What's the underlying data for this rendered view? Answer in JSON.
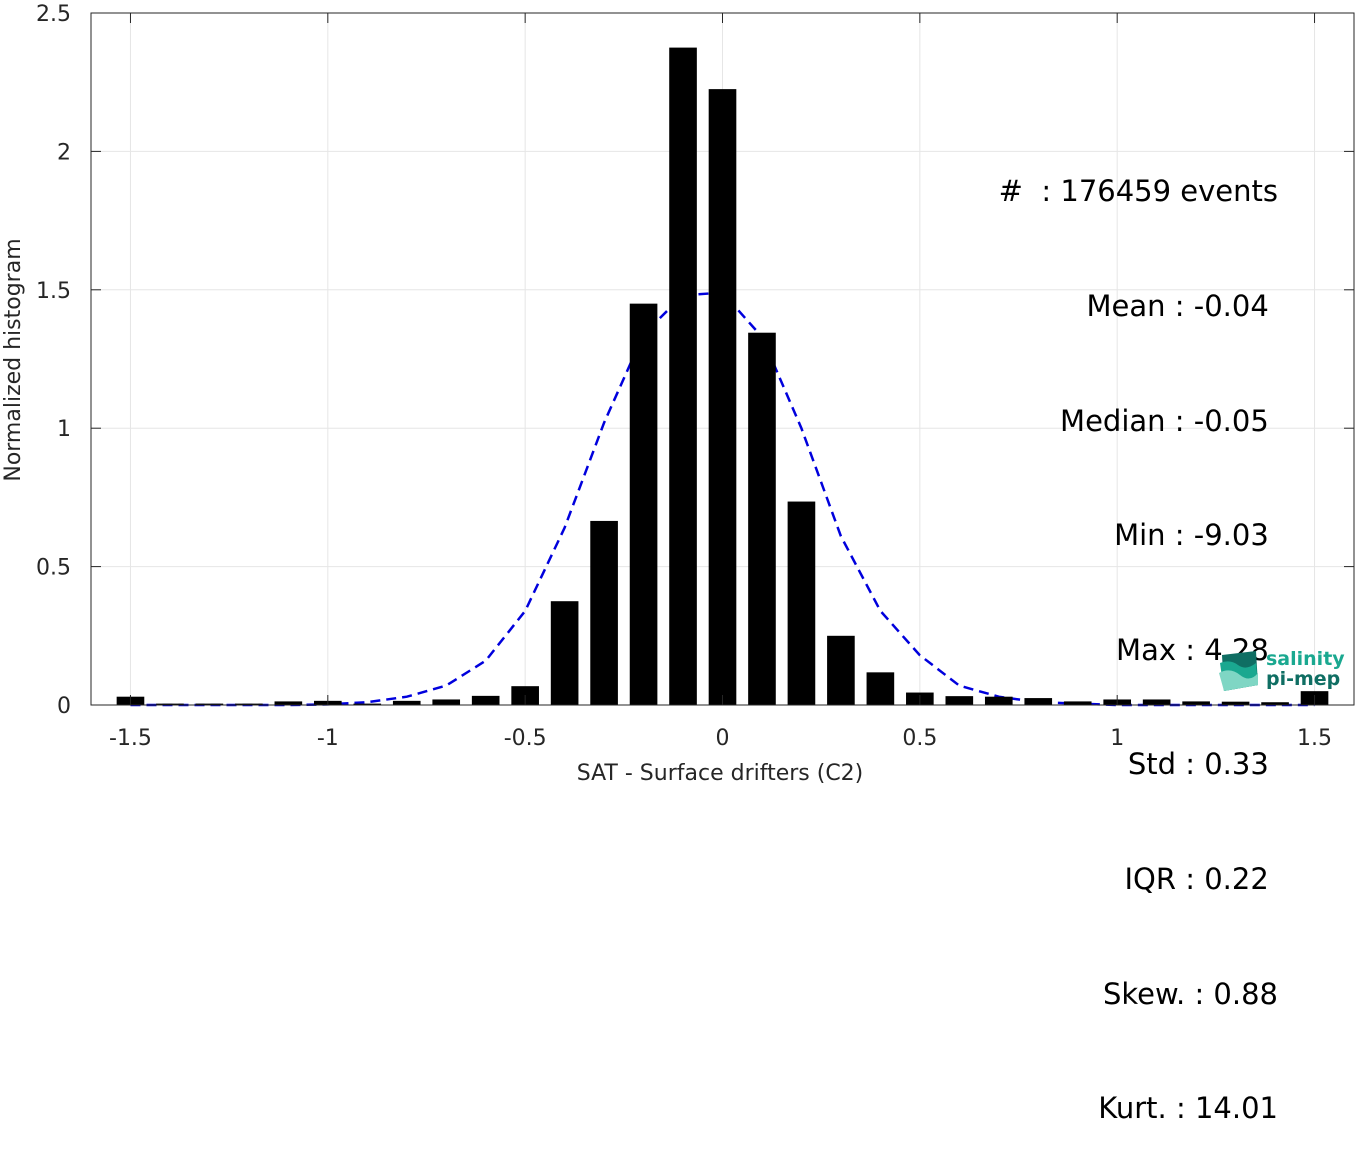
{
  "chart_data": {
    "type": "bar",
    "xlabel": "SAT - Surface drifters (C2)",
    "ylabel": "Normalized histogram",
    "xlim": [
      -1.6,
      1.6
    ],
    "ylim": [
      0,
      2.5
    ],
    "xticks": [
      -1.5,
      -1,
      -0.5,
      0,
      0.5,
      1,
      1.5
    ],
    "xtick_labels": [
      "-1.5",
      "-1",
      "-0.5",
      "0",
      "0.5",
      "1",
      "1.5"
    ],
    "yticks": [
      0,
      0.5,
      1,
      1.5,
      2,
      2.5
    ],
    "ytick_labels": [
      "0",
      "0.5",
      "1",
      "1.5",
      "2",
      "2.5"
    ],
    "grid": true,
    "bar_width": 0.07,
    "bar_color": "#000000",
    "bins": [
      -1.5,
      -1.4,
      -1.3,
      -1.2,
      -1.1,
      -1.0,
      -0.9,
      -0.8,
      -0.7,
      -0.6,
      -0.5,
      -0.4,
      -0.3,
      -0.2,
      -0.1,
      0.0,
      0.1,
      0.2,
      0.3,
      0.4,
      0.5,
      0.6,
      0.7,
      0.8,
      0.9,
      1.0,
      1.1,
      1.2,
      1.3,
      1.4,
      1.5
    ],
    "values": [
      0.03,
      0.005,
      0.005,
      0.005,
      0.013,
      0.015,
      0.005,
      0.015,
      0.02,
      0.033,
      0.068,
      0.375,
      0.665,
      1.45,
      2.375,
      2.225,
      1.345,
      0.735,
      0.25,
      0.118,
      0.045,
      0.032,
      0.03,
      0.025,
      0.013,
      0.02,
      0.02,
      0.013,
      0.012,
      0.01,
      0.05
    ],
    "fit_line": {
      "style": "dashed",
      "color": "#0000dd",
      "x": [
        -1.5,
        -1.4,
        -1.3,
        -1.2,
        -1.1,
        -1.0,
        -0.9,
        -0.8,
        -0.7,
        -0.6,
        -0.5,
        -0.4,
        -0.3,
        -0.2,
        -0.1,
        0.0,
        0.1,
        0.2,
        0.3,
        0.4,
        0.5,
        0.6,
        0.7,
        0.8,
        0.9,
        1.0,
        1.1,
        1.2,
        1.3,
        1.4,
        1.5
      ],
      "y": [
        0.0,
        0.0,
        0.0,
        0.0,
        0.0,
        0.002,
        0.01,
        0.03,
        0.07,
        0.16,
        0.34,
        0.64,
        1.02,
        1.34,
        1.48,
        1.49,
        1.33,
        1.0,
        0.61,
        0.34,
        0.18,
        0.07,
        0.03,
        0.01,
        0.005,
        0.0,
        0.0,
        0.0,
        0.0,
        0.0,
        0.0
      ]
    }
  },
  "stats": [
    "#  : 176459 events",
    "Mean : -0.04 ",
    "Median : -0.05 ",
    "Min : -9.03 ",
    "Max : 4.28 ",
    "Std : 0.33 ",
    "IQR : 0.22 ",
    "Skew. : 0.88",
    "Kurt. : 14.01"
  ],
  "logo": {
    "line1": "salinity",
    "line2": "pi-mep",
    "colors": [
      "#1aa890",
      "#0f6e63",
      "#7fd6c4"
    ]
  }
}
